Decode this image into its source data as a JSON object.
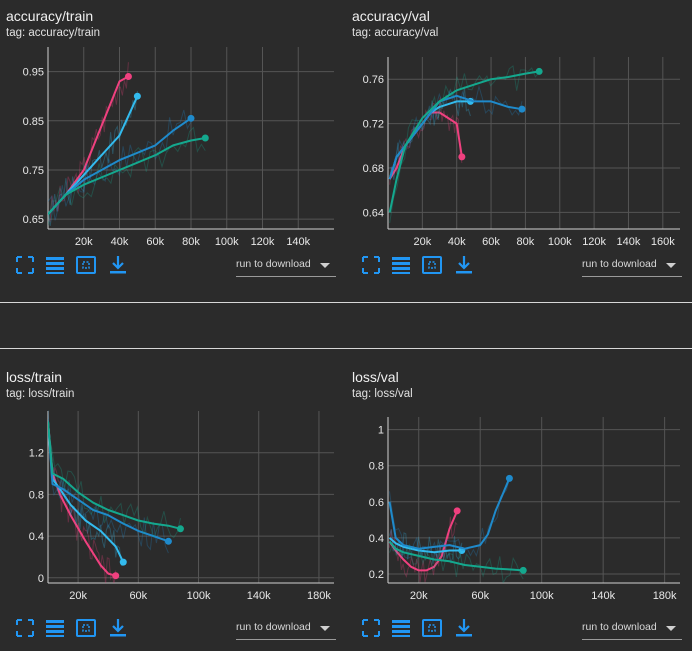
{
  "chart_data": [
    {
      "id": "acc_train",
      "type": "line",
      "title": "accuracy/train",
      "tag": "tag: accuracy/train",
      "xticks": [
        "20k",
        "40k",
        "60k",
        "80k",
        "100k",
        "120k",
        "140k"
      ],
      "xtick_values": [
        20000,
        40000,
        60000,
        80000,
        100000,
        120000,
        140000
      ],
      "yticks": [
        "0.65",
        "0.75",
        "0.85",
        "0.95"
      ],
      "ytick_values": [
        0.65,
        0.75,
        0.85,
        0.95
      ],
      "xlim": [
        0,
        160000
      ],
      "ylim": [
        0.63,
        1.0
      ],
      "series": [
        {
          "color": "#f0407f",
          "x": [
            0,
            5000,
            10000,
            20000,
            30000,
            40000,
            45000
          ],
          "y": [
            0.66,
            0.68,
            0.7,
            0.75,
            0.84,
            0.93,
            0.94
          ]
        },
        {
          "color": "#33bbee",
          "x": [
            0,
            5000,
            10000,
            20000,
            30000,
            40000,
            50000
          ],
          "y": [
            0.66,
            0.68,
            0.7,
            0.74,
            0.78,
            0.82,
            0.9
          ]
        },
        {
          "color": "#1f8acb",
          "x": [
            0,
            10000,
            20000,
            40000,
            60000,
            70000,
            80000
          ],
          "y": [
            0.66,
            0.7,
            0.73,
            0.77,
            0.8,
            0.83,
            0.855
          ]
        },
        {
          "color": "#14a88e",
          "x": [
            0,
            10000,
            20000,
            40000,
            60000,
            70000,
            80000,
            88000
          ],
          "y": [
            0.66,
            0.7,
            0.72,
            0.75,
            0.78,
            0.8,
            0.81,
            0.815
          ]
        }
      ]
    },
    {
      "id": "acc_val",
      "type": "line",
      "title": "accuracy/val",
      "tag": "tag: accuracy/val",
      "xticks": [
        "20k",
        "40k",
        "60k",
        "80k",
        "100k",
        "120k",
        "140k",
        "160k"
      ],
      "xtick_values": [
        20000,
        40000,
        60000,
        80000,
        100000,
        120000,
        140000,
        160000
      ],
      "yticks": [
        "0.64",
        "0.68",
        "0.72",
        "0.76"
      ],
      "ytick_values": [
        0.64,
        0.68,
        0.72,
        0.76
      ],
      "xlim": [
        0,
        170000
      ],
      "ylim": [
        0.625,
        0.78
      ],
      "series": [
        {
          "color": "#f0407f",
          "x": [
            1000,
            5000,
            10000,
            20000,
            25000,
            30000,
            35000,
            40000,
            43000
          ],
          "y": [
            0.67,
            0.68,
            0.7,
            0.72,
            0.73,
            0.73,
            0.725,
            0.72,
            0.69
          ]
        },
        {
          "color": "#33bbee",
          "x": [
            1000,
            5000,
            10000,
            20000,
            25000,
            30000,
            40000,
            48000
          ],
          "y": [
            0.67,
            0.69,
            0.7,
            0.72,
            0.73,
            0.735,
            0.74,
            0.74
          ]
        },
        {
          "color": "#1f8acb",
          "x": [
            1000,
            5000,
            10000,
            20000,
            30000,
            40000,
            50000,
            60000,
            70000,
            78000
          ],
          "y": [
            0.67,
            0.69,
            0.7,
            0.72,
            0.74,
            0.745,
            0.74,
            0.74,
            0.735,
            0.733
          ]
        },
        {
          "color": "#14a88e",
          "x": [
            1000,
            5000,
            10000,
            20000,
            30000,
            40000,
            50000,
            60000,
            70000,
            80000,
            88000
          ],
          "y": [
            0.64,
            0.67,
            0.7,
            0.725,
            0.74,
            0.75,
            0.755,
            0.76,
            0.762,
            0.765,
            0.767
          ]
        }
      ]
    },
    {
      "id": "loss_train",
      "type": "line",
      "title": "loss/train",
      "tag": "tag: loss/train",
      "xticks": [
        "20k",
        "60k",
        "100k",
        "140k",
        "180k"
      ],
      "xtick_values": [
        20000,
        60000,
        100000,
        140000,
        180000
      ],
      "yticks": [
        "0",
        "0.4",
        "0.8",
        "1.2"
      ],
      "ytick_values": [
        0,
        0.4,
        0.8,
        1.2
      ],
      "xlim": [
        0,
        190000
      ],
      "ylim": [
        -0.05,
        1.6
      ],
      "series": [
        {
          "color": "#f0407f",
          "x": [
            0,
            3000,
            8000,
            15000,
            25000,
            35000,
            40000,
            45000
          ],
          "y": [
            1.5,
            1.0,
            0.8,
            0.6,
            0.35,
            0.12,
            0.04,
            0.02
          ]
        },
        {
          "color": "#33bbee",
          "x": [
            0,
            3000,
            8000,
            15000,
            25000,
            35000,
            45000,
            50000
          ],
          "y": [
            1.5,
            0.95,
            0.85,
            0.7,
            0.55,
            0.45,
            0.3,
            0.15
          ]
        },
        {
          "color": "#1f8acb",
          "x": [
            0,
            3000,
            10000,
            20000,
            30000,
            40000,
            50000,
            60000,
            70000,
            80000
          ],
          "y": [
            1.5,
            0.9,
            0.85,
            0.75,
            0.65,
            0.6,
            0.52,
            0.45,
            0.4,
            0.35
          ]
        },
        {
          "color": "#14a88e",
          "x": [
            0,
            3000,
            10000,
            20000,
            30000,
            40000,
            50000,
            60000,
            70000,
            80000,
            88000
          ],
          "y": [
            1.5,
            1.0,
            0.95,
            0.82,
            0.72,
            0.65,
            0.6,
            0.55,
            0.52,
            0.5,
            0.47
          ]
        }
      ]
    },
    {
      "id": "loss_val",
      "type": "line",
      "title": "loss/val",
      "tag": "tag: loss/val",
      "xticks": [
        "20k",
        "60k",
        "100k",
        "140k",
        "180k"
      ],
      "xtick_values": [
        20000,
        60000,
        100000,
        140000,
        180000
      ],
      "yticks": [
        "0.2",
        "0.4",
        "0.6",
        "0.8",
        "1"
      ],
      "ytick_values": [
        0.2,
        0.4,
        0.6,
        0.8,
        1.0
      ],
      "xlim": [
        0,
        190000
      ],
      "ylim": [
        0.15,
        1.07
      ],
      "series": [
        {
          "color": "#f0407f",
          "x": [
            1000,
            5000,
            10000,
            15000,
            20000,
            25000,
            30000,
            35000,
            40000,
            45000
          ],
          "y": [
            0.38,
            0.33,
            0.28,
            0.24,
            0.22,
            0.22,
            0.24,
            0.3,
            0.45,
            0.55
          ]
        },
        {
          "color": "#33bbee",
          "x": [
            1000,
            5000,
            10000,
            20000,
            30000,
            40000,
            48000
          ],
          "y": [
            0.4,
            0.37,
            0.35,
            0.33,
            0.32,
            0.33,
            0.33
          ]
        },
        {
          "color": "#1f8acb",
          "x": [
            1000,
            5000,
            10000,
            20000,
            30000,
            40000,
            50000,
            60000,
            65000,
            70000,
            75000,
            79000
          ],
          "y": [
            0.6,
            0.4,
            0.36,
            0.34,
            0.35,
            0.36,
            0.34,
            0.36,
            0.42,
            0.55,
            0.65,
            0.73
          ]
        },
        {
          "color": "#14a88e",
          "x": [
            1000,
            5000,
            10000,
            20000,
            30000,
            40000,
            50000,
            60000,
            70000,
            80000,
            88000
          ],
          "y": [
            0.38,
            0.34,
            0.32,
            0.3,
            0.28,
            0.27,
            0.25,
            0.24,
            0.23,
            0.225,
            0.22
          ]
        }
      ]
    }
  ],
  "toolbar": {
    "download_label": "run to download",
    "accent": "#2196f3"
  }
}
